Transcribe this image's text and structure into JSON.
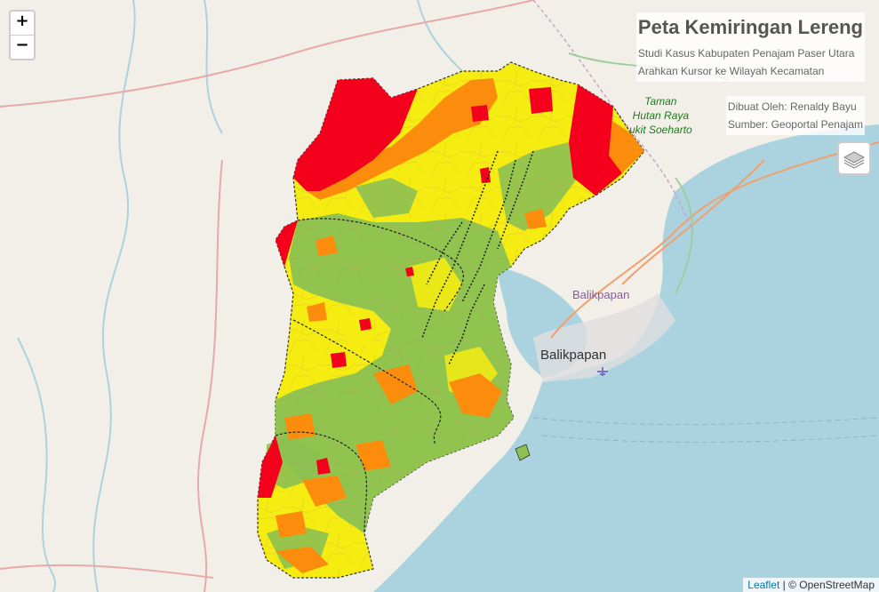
{
  "zoom": {
    "in_label": "+",
    "out_label": "−"
  },
  "info": {
    "title": "Peta Kemiringan Lereng",
    "subtitle": "Studi Kasus Kabupaten Penajam Paser Utara",
    "hint": "Arahkan Kursor ke Wilayah Kecamatan"
  },
  "credit": {
    "author": "Dibuat Oleh: Renaldy Bayu",
    "source": "Sumber: Geoportal Penajam"
  },
  "labels": {
    "park_line1": "Taman",
    "park_line2": "Hutan Raya",
    "park_line3": "ukit Soeharto",
    "city_upper": "Balikpapan",
    "city_main": "Balikpapan"
  },
  "attribution": {
    "leaflet": "Leaflet",
    "separator": " | © ",
    "osm": "OpenStreetMap"
  },
  "colors": {
    "land": "#f2efe9",
    "sea": "#aad3df",
    "flat": "#8cc152",
    "gentle": "#f5ec12",
    "moderate": "#fb8c0c",
    "steep": "#f5001c",
    "park_text": "#1f7a1f",
    "city_text": "#333333"
  },
  "icons": {
    "layers": "layers-icon",
    "airport": "airport-icon"
  }
}
